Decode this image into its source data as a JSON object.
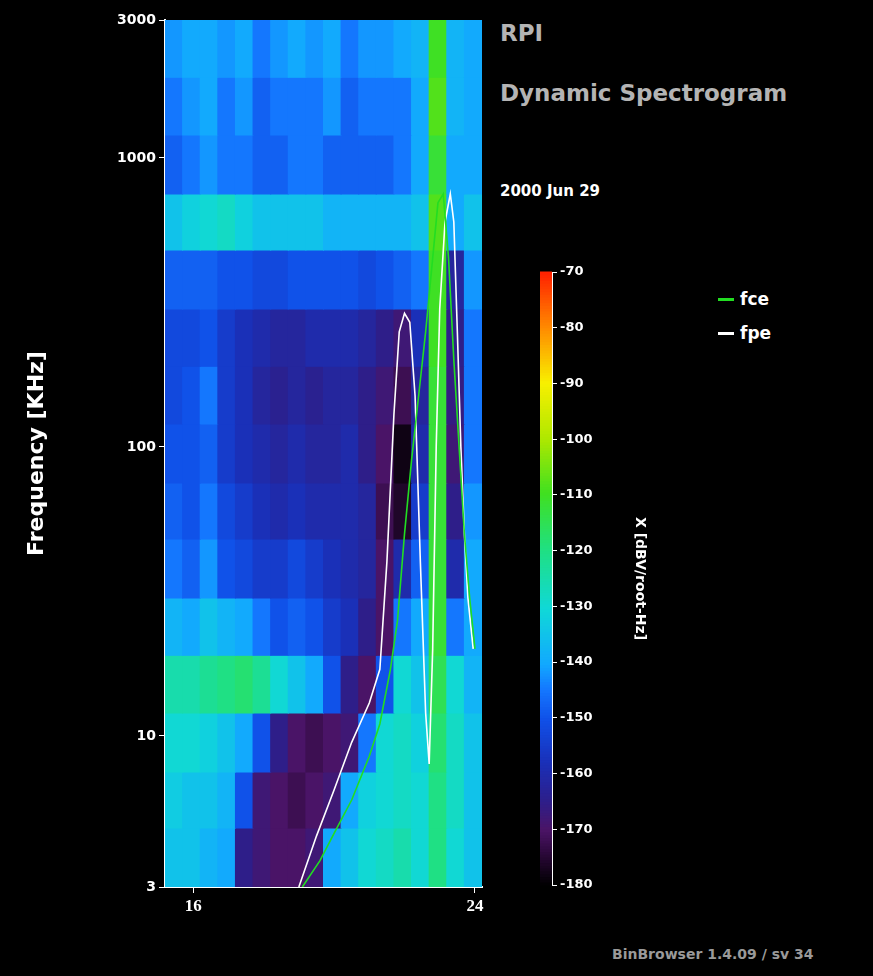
{
  "chart_data": {
    "type": "heatmap",
    "title": "RPI",
    "subtitle": "Dynamic Spectrogram",
    "annotations": [
      "2000 Jun 29",
      "BinBrowser 1.4.09 / sv 34"
    ],
    "y_label": "Frequency [KHz]",
    "log": "y",
    "grid": false,
    "legend": "right",
    "xlim": [
      15.2,
      24.2
    ],
    "xticks": [
      16,
      24
    ],
    "ylim": [
      3,
      3000
    ],
    "yticks": [
      3,
      10,
      100,
      1000,
      3000
    ],
    "x_bins": [
      15.2,
      15.7,
      16.2,
      16.7,
      17.2,
      17.7,
      18.2,
      18.7,
      19.2,
      19.7,
      20.2,
      20.7,
      21.2,
      21.7,
      22.2,
      22.7,
      23.2,
      23.7,
      24.2
    ],
    "y_bins": [
      3,
      4.8,
      7.5,
      12,
      19,
      30,
      48,
      75,
      120,
      190,
      300,
      480,
      750,
      1200,
      1900,
      3000
    ],
    "cells": [
      [
        -135,
        -135,
        -138,
        -140,
        -165,
        -168,
        -170,
        -170,
        -168,
        -140,
        -135,
        -130,
        -128,
        -125,
        -130,
        -120,
        -130,
        -135
      ],
      [
        -133,
        -135,
        -135,
        -138,
        -150,
        -168,
        -170,
        -172,
        -170,
        -168,
        -140,
        -132,
        -130,
        -128,
        -130,
        -120,
        -128,
        -135
      ],
      [
        -130,
        -130,
        -132,
        -135,
        -140,
        -150,
        -165,
        -170,
        -172,
        -170,
        -168,
        -145,
        -130,
        -128,
        -132,
        -118,
        -128,
        -135
      ],
      [
        -125,
        -125,
        -122,
        -120,
        -118,
        -122,
        -130,
        -135,
        -140,
        -150,
        -165,
        -170,
        -150,
        -130,
        -135,
        -115,
        -130,
        -138
      ],
      [
        -138,
        -140,
        -135,
        -138,
        -140,
        -145,
        -150,
        -148,
        -150,
        -155,
        -158,
        -165,
        -170,
        -145,
        -140,
        -112,
        -145,
        -140
      ],
      [
        -145,
        -148,
        -142,
        -150,
        -152,
        -155,
        -155,
        -152,
        -155,
        -158,
        -160,
        -162,
        -170,
        -160,
        -148,
        -112,
        -160,
        -140
      ],
      [
        -148,
        -150,
        -145,
        -152,
        -155,
        -158,
        -160,
        -158,
        -160,
        -160,
        -160,
        -162,
        -172,
        -176,
        -155,
        -112,
        -165,
        -142
      ],
      [
        -150,
        -150,
        -148,
        -155,
        -158,
        -160,
        -162,
        -160,
        -162,
        -162,
        -160,
        -165,
        -170,
        -178,
        -160,
        -112,
        -168,
        -145
      ],
      [
        -152,
        -150,
        -145,
        -155,
        -158,
        -162,
        -164,
        -162,
        -164,
        -162,
        -162,
        -165,
        -168,
        -172,
        -162,
        -112,
        -166,
        -145
      ],
      [
        -152,
        -152,
        -150,
        -155,
        -158,
        -160,
        -162,
        -162,
        -160,
        -160,
        -160,
        -162,
        -165,
        -168,
        -158,
        -110,
        -165,
        -145
      ],
      [
        -148,
        -148,
        -148,
        -150,
        -150,
        -152,
        -152,
        -150,
        -150,
        -150,
        -150,
        -152,
        -150,
        -148,
        -145,
        -110,
        -162,
        -142
      ],
      [
        -135,
        -132,
        -130,
        -128,
        -132,
        -135,
        -135,
        -135,
        -135,
        -138,
        -138,
        -138,
        -138,
        -138,
        -135,
        -108,
        -140,
        -135
      ],
      [
        -148,
        -145,
        -142,
        -145,
        -145,
        -148,
        -148,
        -145,
        -145,
        -148,
        -148,
        -148,
        -148,
        -145,
        -140,
        -112,
        -140,
        -140
      ],
      [
        -145,
        -142,
        -140,
        -145,
        -142,
        -148,
        -145,
        -145,
        -145,
        -142,
        -148,
        -145,
        -145,
        -145,
        -140,
        -108,
        -138,
        -140
      ],
      [
        -142,
        -140,
        -140,
        -142,
        -140,
        -145,
        -142,
        -140,
        -142,
        -140,
        -145,
        -142,
        -142,
        -140,
        -138,
        -110,
        -138,
        -140
      ]
    ],
    "colorbar": {
      "label": "X [dBV/root-Hz]",
      "range": [
        -180,
        -70
      ],
      "ticks": [
        -70,
        -80,
        -90,
        -100,
        -110,
        -120,
        -130,
        -140,
        -150,
        -160,
        -170,
        -180
      ]
    },
    "series": [
      {
        "name": "fce",
        "color": "#22dd22",
        "line_style": "solid",
        "x": [
          19.1,
          19.6,
          20.0,
          20.5,
          21.0,
          21.3,
          21.6,
          21.8,
          22.0,
          22.2,
          22.4,
          22.6,
          22.8,
          22.95,
          23.1,
          23.25,
          23.4,
          23.55,
          23.7,
          23.85,
          24.0
        ],
        "values": [
          3,
          3.7,
          4.6,
          6,
          8.5,
          11,
          17,
          25,
          50,
          90,
          150,
          250,
          450,
          700,
          750,
          450,
          200,
          100,
          50,
          30,
          20
        ]
      },
      {
        "name": "fpe",
        "color": "#ffffff",
        "line_style": "solid",
        "x": [
          19.0,
          19.5,
          20.0,
          20.5,
          21.0,
          21.3,
          21.5,
          21.7,
          21.85,
          22.0,
          22.15,
          22.3,
          22.45,
          22.6,
          22.7,
          22.8,
          22.9,
          23.0,
          23.15,
          23.3,
          23.4,
          23.5,
          23.6,
          23.7,
          23.8,
          23.95
        ],
        "values": [
          3,
          4.5,
          6.5,
          9.5,
          13,
          17,
          40,
          130,
          250,
          290,
          270,
          150,
          40,
          12,
          8,
          20,
          100,
          300,
          600,
          750,
          600,
          250,
          100,
          50,
          30,
          20
        ]
      }
    ]
  }
}
